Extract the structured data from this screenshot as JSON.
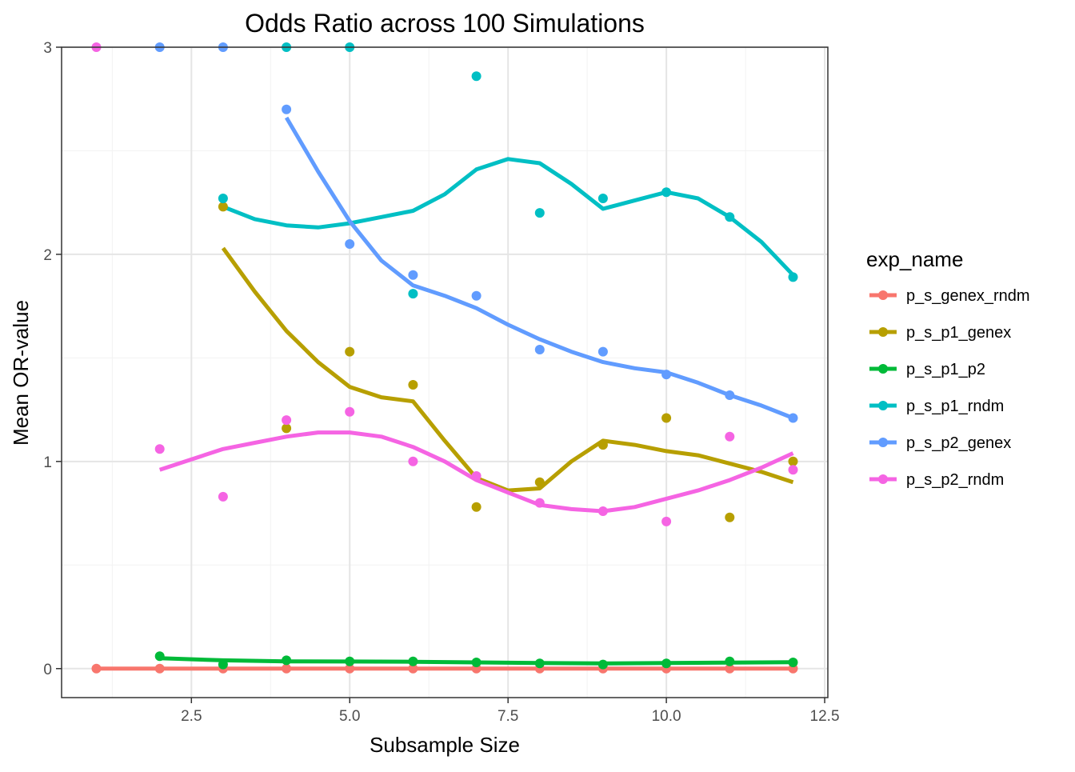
{
  "chart_data": {
    "type": "scatter",
    "title": "Odds Ratio across 100 Simulations",
    "xlabel": "Subsample Size",
    "ylabel": "Mean OR-value",
    "xlim": [
      0.45,
      12.55
    ],
    "ylim": [
      -0.14,
      3.0
    ],
    "x_ticks": [
      2.5,
      5.0,
      7.5,
      10.0,
      12.5
    ],
    "x_tick_labels": [
      "2.5",
      "5.0",
      "7.5",
      "10.0",
      "12.5"
    ],
    "x_minor_ticks": [
      1.25,
      3.75,
      6.25,
      8.75,
      11.25
    ],
    "y_ticks": [
      0,
      1,
      2,
      3
    ],
    "y_tick_labels": [
      "0",
      "1",
      "2",
      "3"
    ],
    "y_minor_ticks": [
      0.5,
      1.5,
      2.5
    ],
    "grid": true,
    "legend_title": "exp_name",
    "legend_position": "right",
    "series": [
      {
        "name": "p_s_genex_rndm",
        "color": "#F8766D",
        "x": [
          1,
          2,
          3,
          4,
          5,
          6,
          7,
          8,
          9,
          10,
          11,
          12
        ],
        "y": [
          0.0,
          0.0,
          0.0,
          0.0,
          0.0,
          0.0,
          0.0,
          0.0,
          0.0,
          0.0,
          0.0,
          0.0
        ],
        "smooth": {
          "x": [
            1,
            2,
            3,
            4,
            5,
            6,
            7,
            8,
            9,
            10,
            11,
            12
          ],
          "y": [
            0.0,
            0.0,
            0.0,
            0.0,
            0.0,
            0.0,
            0.0,
            0.0,
            0.0,
            0.0,
            0.0,
            0.0
          ]
        }
      },
      {
        "name": "p_s_p1_genex",
        "color": "#B79F00",
        "x": [
          3,
          4,
          5,
          6,
          7,
          8,
          9,
          10,
          11,
          12
        ],
        "y": [
          2.23,
          1.16,
          1.53,
          1.37,
          0.78,
          0.9,
          1.08,
          1.21,
          0.73,
          1.0
        ],
        "smooth": {
          "x": [
            3,
            3.5,
            4,
            4.5,
            5,
            5.5,
            6,
            6.5,
            7,
            7.5,
            8,
            8.5,
            9,
            9.5,
            10,
            10.5,
            11,
            11.5,
            12
          ],
          "y": [
            2.03,
            1.82,
            1.63,
            1.48,
            1.36,
            1.31,
            1.29,
            1.1,
            0.92,
            0.86,
            0.87,
            1.0,
            1.1,
            1.08,
            1.05,
            1.03,
            0.99,
            0.95,
            0.9
          ]
        }
      },
      {
        "name": "p_s_p1_p2",
        "color": "#00BA38",
        "x": [
          2,
          3,
          4,
          5,
          6,
          7,
          8,
          9,
          10,
          11,
          12
        ],
        "y": [
          0.06,
          0.02,
          0.04,
          0.035,
          0.035,
          0.03,
          0.025,
          0.02,
          0.025,
          0.035,
          0.03
        ],
        "smooth": {
          "x": [
            2,
            3,
            4,
            5,
            6,
            7,
            8,
            9,
            10,
            11,
            12
          ],
          "y": [
            0.05,
            0.04,
            0.035,
            0.034,
            0.033,
            0.03,
            0.027,
            0.025,
            0.027,
            0.029,
            0.031
          ]
        }
      },
      {
        "name": "p_s_p1_rndm",
        "color": "#00BFC4",
        "x": [
          3,
          4,
          5,
          6,
          7,
          8,
          9,
          10,
          11,
          12
        ],
        "y": [
          2.27,
          3.0,
          3.0,
          1.81,
          2.86,
          2.2,
          2.27,
          2.3,
          2.18,
          1.89
        ],
        "smooth": {
          "x": [
            3,
            3.5,
            4,
            4.5,
            5,
            5.5,
            6,
            6.5,
            7,
            7.5,
            8,
            8.5,
            9,
            9.5,
            10,
            10.5,
            11,
            11.5,
            12
          ],
          "y": [
            2.23,
            2.17,
            2.14,
            2.13,
            2.15,
            2.18,
            2.21,
            2.29,
            2.41,
            2.46,
            2.44,
            2.34,
            2.22,
            2.26,
            2.3,
            2.27,
            2.18,
            2.06,
            1.9
          ]
        }
      },
      {
        "name": "p_s_p2_genex",
        "color": "#619CFF",
        "x": [
          2,
          3,
          4,
          5,
          6,
          7,
          8,
          9,
          10,
          11,
          12
        ],
        "y": [
          3.0,
          3.0,
          2.7,
          2.05,
          1.9,
          1.8,
          1.54,
          1.53,
          1.42,
          1.32,
          1.21
        ],
        "smooth": {
          "x": [
            4,
            4.5,
            5,
            5.5,
            6,
            6.5,
            7,
            7.5,
            8,
            8.5,
            9,
            9.5,
            10,
            10.5,
            11,
            11.5,
            12
          ],
          "y": [
            2.66,
            2.4,
            2.16,
            1.97,
            1.85,
            1.8,
            1.74,
            1.66,
            1.59,
            1.53,
            1.48,
            1.45,
            1.43,
            1.38,
            1.32,
            1.27,
            1.21
          ]
        }
      },
      {
        "name": "p_s_p2_rndm",
        "color": "#F564E3",
        "x": [
          1,
          2,
          3,
          4,
          5,
          6,
          7,
          8,
          9,
          10,
          11,
          12
        ],
        "y": [
          3.0,
          1.06,
          0.83,
          1.2,
          1.24,
          1.0,
          0.93,
          0.8,
          0.76,
          0.71,
          1.12,
          0.96
        ],
        "smooth": {
          "x": [
            2,
            2.5,
            3,
            3.5,
            4,
            4.5,
            5,
            5.5,
            6,
            6.5,
            7,
            7.5,
            8,
            8.5,
            9,
            9.5,
            10,
            10.5,
            11,
            11.5,
            12
          ],
          "y": [
            0.96,
            1.01,
            1.06,
            1.09,
            1.12,
            1.14,
            1.14,
            1.12,
            1.07,
            1.0,
            0.91,
            0.85,
            0.79,
            0.77,
            0.76,
            0.78,
            0.82,
            0.86,
            0.91,
            0.97,
            1.04
          ]
        }
      }
    ]
  }
}
